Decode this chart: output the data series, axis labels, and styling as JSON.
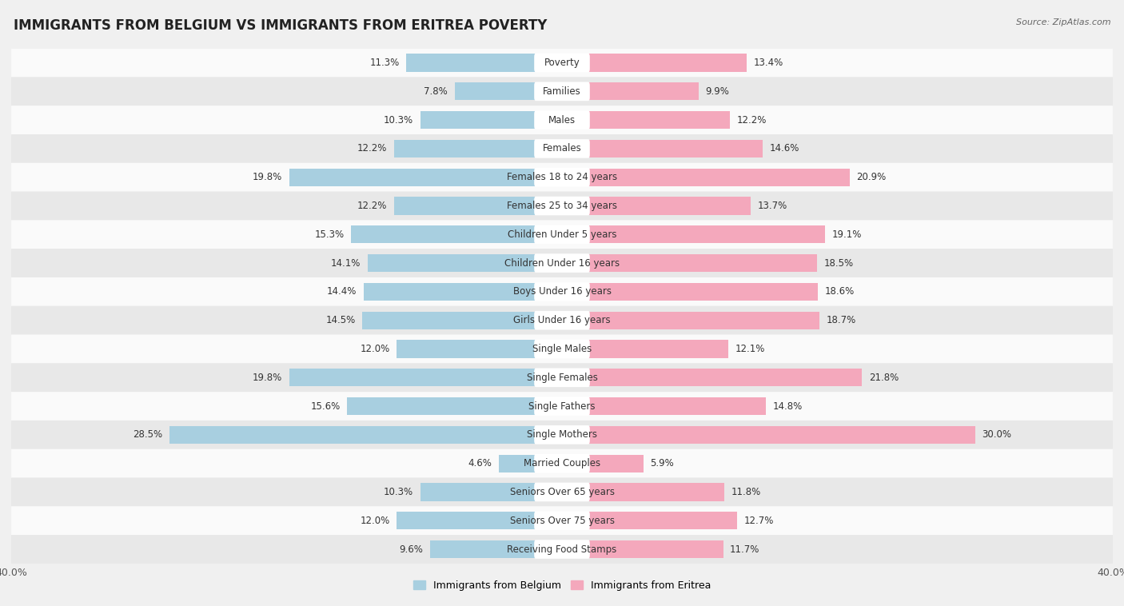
{
  "title": "IMMIGRANTS FROM BELGIUM VS IMMIGRANTS FROM ERITREA POVERTY",
  "source": "Source: ZipAtlas.com",
  "categories": [
    "Poverty",
    "Families",
    "Males",
    "Females",
    "Females 18 to 24 years",
    "Females 25 to 34 years",
    "Children Under 5 years",
    "Children Under 16 years",
    "Boys Under 16 years",
    "Girls Under 16 years",
    "Single Males",
    "Single Females",
    "Single Fathers",
    "Single Mothers",
    "Married Couples",
    "Seniors Over 65 years",
    "Seniors Over 75 years",
    "Receiving Food Stamps"
  ],
  "belgium_values": [
    11.3,
    7.8,
    10.3,
    12.2,
    19.8,
    12.2,
    15.3,
    14.1,
    14.4,
    14.5,
    12.0,
    19.8,
    15.6,
    28.5,
    4.6,
    10.3,
    12.0,
    9.6
  ],
  "eritrea_values": [
    13.4,
    9.9,
    12.2,
    14.6,
    20.9,
    13.7,
    19.1,
    18.5,
    18.6,
    18.7,
    12.1,
    21.8,
    14.8,
    30.0,
    5.9,
    11.8,
    12.7,
    11.7
  ],
  "belgium_color": "#a8cfe0",
  "eritrea_color": "#f4a8bc",
  "bar_height": 0.62,
  "xlim": 40.0,
  "background_color": "#f0f0f0",
  "row_colors": [
    "#fafafa",
    "#e8e8e8"
  ],
  "title_fontsize": 12,
  "label_fontsize": 8.5,
  "value_fontsize": 8.5,
  "tick_fontsize": 9
}
